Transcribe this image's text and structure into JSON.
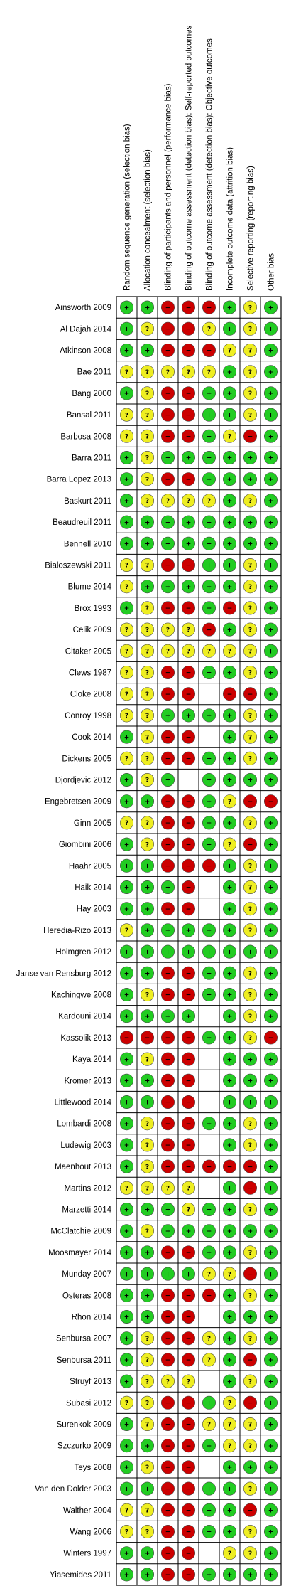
{
  "chart_data": {
    "type": "table",
    "domains": [
      "Random sequence generation (selection bias)",
      "Allocation concealment (selection bias)",
      "Blinding of participants and personnel (performance bias)",
      "Blinding of outcome assessment (detection bias): Self-reported outcomes",
      "Blinding of outcome assessment (detection bias): Objective outcomes",
      "Incomplete outcome data (attrition bias)",
      "Selective reporting (reporting bias)",
      "Other bias"
    ],
    "legend_symbols": {
      "low": "+",
      "unclear": "?",
      "high": "−"
    },
    "rating_colors": {
      "low": "#22cc22",
      "unclear": "#eeee22",
      "high": "#cc0000"
    },
    "studies": [
      {
        "name": "Ainsworth 2009",
        "ratings": [
          "low",
          "low",
          "high",
          "high",
          "high",
          "low",
          "unclear",
          "low"
        ]
      },
      {
        "name": "Al Dajah 2014",
        "ratings": [
          "low",
          "unclear",
          "high",
          "high",
          "unclear",
          "low",
          "unclear",
          "low"
        ]
      },
      {
        "name": "Atkinson 2008",
        "ratings": [
          "low",
          "low",
          "high",
          "high",
          "high",
          "unclear",
          "unclear",
          "low"
        ]
      },
      {
        "name": "Bae 2011",
        "ratings": [
          "unclear",
          "unclear",
          "unclear",
          "unclear",
          "unclear",
          "low",
          "unclear",
          "low"
        ]
      },
      {
        "name": "Bang 2000",
        "ratings": [
          "low",
          "unclear",
          "high",
          "high",
          "low",
          "low",
          "unclear",
          "low"
        ]
      },
      {
        "name": "Bansal 2011",
        "ratings": [
          "unclear",
          "unclear",
          "high",
          "high",
          "low",
          "low",
          "unclear",
          "low"
        ]
      },
      {
        "name": "Barbosa 2008",
        "ratings": [
          "unclear",
          "unclear",
          "high",
          "high",
          "low",
          "unclear",
          "high",
          "low"
        ]
      },
      {
        "name": "Barra 2011",
        "ratings": [
          "low",
          "unclear",
          "low",
          "low",
          "low",
          "low",
          "low",
          "low"
        ]
      },
      {
        "name": "Barra Lopez 2013",
        "ratings": [
          "low",
          "unclear",
          "high",
          "high",
          "low",
          "low",
          "low",
          "low"
        ]
      },
      {
        "name": "Baskurt 2011",
        "ratings": [
          "low",
          "unclear",
          "unclear",
          "unclear",
          "unclear",
          "low",
          "unclear",
          "low"
        ]
      },
      {
        "name": "Beaudreuil 2011",
        "ratings": [
          "low",
          "low",
          "low",
          "low",
          "low",
          "low",
          "low",
          "low"
        ]
      },
      {
        "name": "Bennell 2010",
        "ratings": [
          "low",
          "low",
          "low",
          "low",
          "low",
          "low",
          "low",
          "low"
        ]
      },
      {
        "name": "Bialoszewski 2011",
        "ratings": [
          "unclear",
          "unclear",
          "high",
          "high",
          "low",
          "low",
          "unclear",
          "low"
        ]
      },
      {
        "name": "Blume 2014",
        "ratings": [
          "unclear",
          "low",
          "low",
          "low",
          "low",
          "low",
          "unclear",
          "low"
        ]
      },
      {
        "name": "Brox 1993",
        "ratings": [
          "low",
          "unclear",
          "high",
          "high",
          "low",
          "high",
          "unclear",
          "low"
        ]
      },
      {
        "name": "Celik 2009",
        "ratings": [
          "unclear",
          "unclear",
          "unclear",
          "unclear",
          "high",
          "low",
          "unclear",
          "low"
        ]
      },
      {
        "name": "Citaker 2005",
        "ratings": [
          "unclear",
          "unclear",
          "unclear",
          "unclear",
          "unclear",
          "unclear",
          "unclear",
          "low"
        ]
      },
      {
        "name": "Clews 1987",
        "ratings": [
          "unclear",
          "unclear",
          "high",
          "high",
          "low",
          "low",
          "unclear",
          "low"
        ]
      },
      {
        "name": "Cloke 2008",
        "ratings": [
          "unclear",
          "unclear",
          "high",
          "high",
          "",
          "high",
          "high",
          "low"
        ]
      },
      {
        "name": "Conroy 1998",
        "ratings": [
          "unclear",
          "unclear",
          "low",
          "low",
          "low",
          "low",
          "unclear",
          "low"
        ]
      },
      {
        "name": "Cook 2014",
        "ratings": [
          "low",
          "unclear",
          "high",
          "high",
          "",
          "low",
          "unclear",
          "low"
        ]
      },
      {
        "name": "Dickens 2005",
        "ratings": [
          "unclear",
          "unclear",
          "high",
          "high",
          "low",
          "low",
          "unclear",
          "low"
        ]
      },
      {
        "name": "Djordjevic 2012",
        "ratings": [
          "low",
          "unclear",
          "low",
          "",
          "low",
          "low",
          "low",
          "low"
        ]
      },
      {
        "name": "Engebretsen 2009",
        "ratings": [
          "low",
          "low",
          "high",
          "high",
          "low",
          "unclear",
          "high",
          "high"
        ]
      },
      {
        "name": "Ginn 2005",
        "ratings": [
          "unclear",
          "unclear",
          "high",
          "high",
          "low",
          "low",
          "unclear",
          "low"
        ]
      },
      {
        "name": "Giombini 2006",
        "ratings": [
          "low",
          "unclear",
          "high",
          "high",
          "low",
          "unclear",
          "high",
          "low"
        ]
      },
      {
        "name": "Haahr 2005",
        "ratings": [
          "low",
          "low",
          "high",
          "high",
          "high",
          "low",
          "unclear",
          "low"
        ]
      },
      {
        "name": "Haik 2014",
        "ratings": [
          "low",
          "low",
          "low",
          "high",
          "",
          "low",
          "unclear",
          "low"
        ]
      },
      {
        "name": "Hay 2003",
        "ratings": [
          "low",
          "low",
          "high",
          "high",
          "",
          "low",
          "unclear",
          "low"
        ]
      },
      {
        "name": "Heredia-Rizo 2013",
        "ratings": [
          "unclear",
          "low",
          "low",
          "low",
          "low",
          "low",
          "unclear",
          "low"
        ]
      },
      {
        "name": "Holmgren 2012",
        "ratings": [
          "low",
          "low",
          "low",
          "low",
          "low",
          "low",
          "low",
          "low"
        ]
      },
      {
        "name": "Janse van Rensburg 2012",
        "ratings": [
          "low",
          "low",
          "high",
          "high",
          "low",
          "low",
          "unclear",
          "low"
        ]
      },
      {
        "name": "Kachingwe 2008",
        "ratings": [
          "low",
          "unclear",
          "high",
          "high",
          "low",
          "low",
          "unclear",
          "low"
        ]
      },
      {
        "name": "Kardouni 2014",
        "ratings": [
          "low",
          "low",
          "low",
          "low",
          "",
          "low",
          "unclear",
          "low"
        ]
      },
      {
        "name": "Kassolik 2013",
        "ratings": [
          "high",
          "high",
          "high",
          "high",
          "low",
          "low",
          "unclear",
          "high"
        ]
      },
      {
        "name": "Kaya 2014",
        "ratings": [
          "low",
          "unclear",
          "high",
          "high",
          "",
          "low",
          "low",
          "low"
        ]
      },
      {
        "name": "Kromer 2013",
        "ratings": [
          "low",
          "low",
          "high",
          "high",
          "",
          "low",
          "low",
          "low"
        ]
      },
      {
        "name": "Littlewood 2014",
        "ratings": [
          "low",
          "low",
          "high",
          "high",
          "",
          "low",
          "low",
          "low"
        ]
      },
      {
        "name": "Lombardi 2008",
        "ratings": [
          "low",
          "unclear",
          "high",
          "high",
          "low",
          "low",
          "unclear",
          "low"
        ]
      },
      {
        "name": "Ludewig 2003",
        "ratings": [
          "low",
          "unclear",
          "high",
          "high",
          "",
          "low",
          "unclear",
          "low"
        ]
      },
      {
        "name": "Maenhout 2013",
        "ratings": [
          "low",
          "unclear",
          "high",
          "high",
          "high",
          "high",
          "high",
          "low"
        ]
      },
      {
        "name": "Martins 2012",
        "ratings": [
          "unclear",
          "unclear",
          "unclear",
          "unclear",
          "",
          "low",
          "high",
          "low"
        ]
      },
      {
        "name": "Marzetti 2014",
        "ratings": [
          "low",
          "low",
          "low",
          "unclear",
          "low",
          "low",
          "unclear",
          "low"
        ]
      },
      {
        "name": "McClatchie 2009",
        "ratings": [
          "low",
          "unclear",
          "low",
          "low",
          "low",
          "low",
          "low",
          "low"
        ]
      },
      {
        "name": "Moosmayer 2014",
        "ratings": [
          "low",
          "low",
          "high",
          "high",
          "low",
          "low",
          "unclear",
          "low"
        ]
      },
      {
        "name": "Munday 2007",
        "ratings": [
          "low",
          "low",
          "low",
          "low",
          "unclear",
          "unclear",
          "high",
          "low"
        ]
      },
      {
        "name": "Osteras 2008",
        "ratings": [
          "low",
          "low",
          "high",
          "high",
          "high",
          "low",
          "unclear",
          "low"
        ]
      },
      {
        "name": "Rhon 2014",
        "ratings": [
          "low",
          "low",
          "high",
          "high",
          "",
          "low",
          "low",
          "low"
        ]
      },
      {
        "name": "Senbursa 2007",
        "ratings": [
          "low",
          "unclear",
          "high",
          "high",
          "unclear",
          "low",
          "unclear",
          "low"
        ]
      },
      {
        "name": "Senbursa 2011",
        "ratings": [
          "low",
          "unclear",
          "high",
          "high",
          "unclear",
          "low",
          "high",
          "low"
        ]
      },
      {
        "name": "Struyf 2013",
        "ratings": [
          "low",
          "unclear",
          "unclear",
          "unclear",
          "",
          "low",
          "unclear",
          "low"
        ]
      },
      {
        "name": "Subasi 2012",
        "ratings": [
          "unclear",
          "unclear",
          "high",
          "high",
          "low",
          "unclear",
          "high",
          "low"
        ]
      },
      {
        "name": "Surenkok 2009",
        "ratings": [
          "low",
          "unclear",
          "high",
          "high",
          "unclear",
          "unclear",
          "unclear",
          "low"
        ]
      },
      {
        "name": "Szczurko 2009",
        "ratings": [
          "low",
          "low",
          "high",
          "high",
          "low",
          "unclear",
          "unclear",
          "low"
        ]
      },
      {
        "name": "Teys 2008",
        "ratings": [
          "low",
          "unclear",
          "high",
          "high",
          "",
          "low",
          "low",
          "low"
        ]
      },
      {
        "name": "Van den Dolder 2003",
        "ratings": [
          "low",
          "low",
          "high",
          "high",
          "low",
          "low",
          "unclear",
          "low"
        ]
      },
      {
        "name": "Walther 2004",
        "ratings": [
          "unclear",
          "unclear",
          "high",
          "high",
          "low",
          "low",
          "high",
          "low"
        ]
      },
      {
        "name": "Wang 2006",
        "ratings": [
          "unclear",
          "unclear",
          "high",
          "high",
          "low",
          "low",
          "unclear",
          "low"
        ]
      },
      {
        "name": "Winters 1997",
        "ratings": [
          "low",
          "low",
          "high",
          "high",
          "",
          "unclear",
          "unclear",
          "low"
        ]
      },
      {
        "name": "Yiasemides 2011",
        "ratings": [
          "low",
          "low",
          "high",
          "high",
          "low",
          "low",
          "low",
          "low"
        ]
      }
    ]
  }
}
